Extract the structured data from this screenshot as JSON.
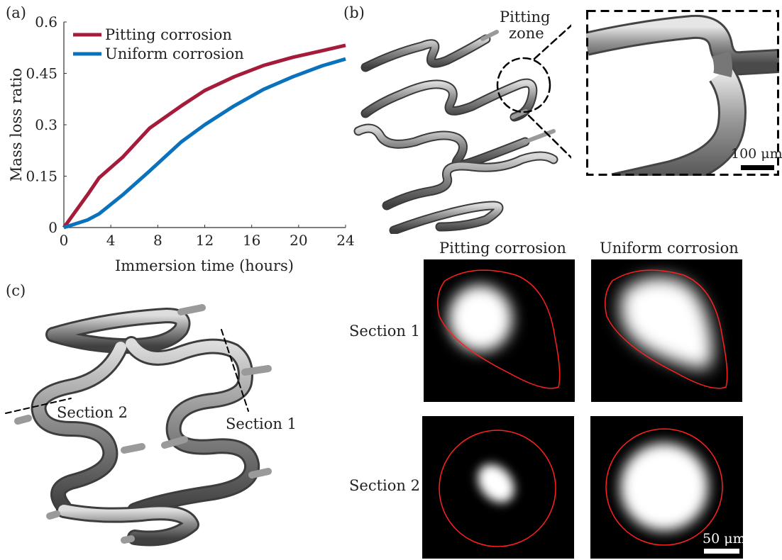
{
  "panel_labels": {
    "a": "(a)",
    "b": "(b)",
    "c": "(c)"
  },
  "chart_data": {
    "type": "line",
    "xlabel": "Immersion time (hours)",
    "ylabel": "Mass loss ratio",
    "xlim": [
      0,
      24
    ],
    "ylim": [
      0,
      0.6
    ],
    "xticks": [
      "0",
      "4",
      "8",
      "12",
      "16",
      "20",
      "24"
    ],
    "yticks": [
      "0",
      "0.15",
      "0.3",
      "0.45",
      "0.6"
    ],
    "legend_position": "top-left",
    "grid": false,
    "series": [
      {
        "name": "Pitting corrosion",
        "color": "#a51c3a",
        "x": [
          0,
          2,
          3,
          5,
          7.3,
          10,
          12,
          14.5,
          17,
          19.5,
          22,
          24
        ],
        "y": [
          0,
          0.095,
          0.145,
          0.205,
          0.29,
          0.355,
          0.4,
          0.44,
          0.473,
          0.497,
          0.516,
          0.532
        ]
      },
      {
        "name": "Uniform corrosion",
        "color": "#0a72bd",
        "x": [
          0,
          2,
          3,
          5,
          7.3,
          10,
          12,
          14.5,
          17,
          19.5,
          22,
          24
        ],
        "y": [
          0,
          0.022,
          0.04,
          0.095,
          0.165,
          0.25,
          0.3,
          0.355,
          0.403,
          0.44,
          0.472,
          0.492
        ]
      }
    ]
  },
  "panel_b": {
    "zone_label_line1": "Pitting",
    "zone_label_line2": "zone",
    "scale_label": "100 μm"
  },
  "panel_c": {
    "section1_label": "Section 1",
    "section2_label": "Section 2",
    "col_pitting": "Pitting corrosion",
    "col_uniform": "Uniform corrosion",
    "row_section1": "Section 1",
    "row_section2": "Section 2",
    "scale_label": "50 μm",
    "outline_color": "#ff2020"
  }
}
